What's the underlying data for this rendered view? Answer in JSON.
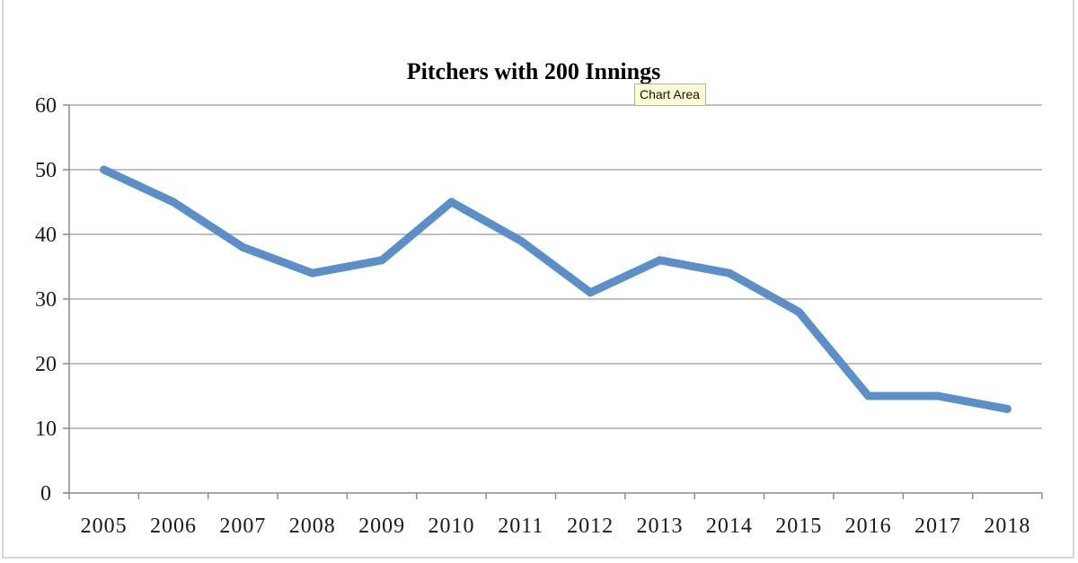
{
  "chart_data": {
    "type": "line",
    "title": "Pitchers with 200 Innings",
    "xlabel": "",
    "ylabel": "",
    "categories": [
      "2005",
      "2006",
      "2007",
      "2008",
      "2009",
      "2010",
      "2011",
      "2012",
      "2013",
      "2014",
      "2015",
      "2016",
      "2017",
      "2018"
    ],
    "series": [
      {
        "name": "Pitchers with 200 Innings",
        "color": "#5b8fc7",
        "values": [
          50,
          45,
          38,
          34,
          36,
          45,
          39,
          31,
          36,
          34,
          28,
          15,
          15,
          13
        ]
      }
    ],
    "ylim": [
      0,
      60
    ],
    "yticks": [
      0,
      10,
      20,
      30,
      40,
      50,
      60
    ],
    "grid": true,
    "legend": "none"
  },
  "tooltip": {
    "text": "Chart Area"
  },
  "colors": {
    "line": "#5b8fc7",
    "grid": "#bfbfbf",
    "axis": "#8c8c8c"
  }
}
